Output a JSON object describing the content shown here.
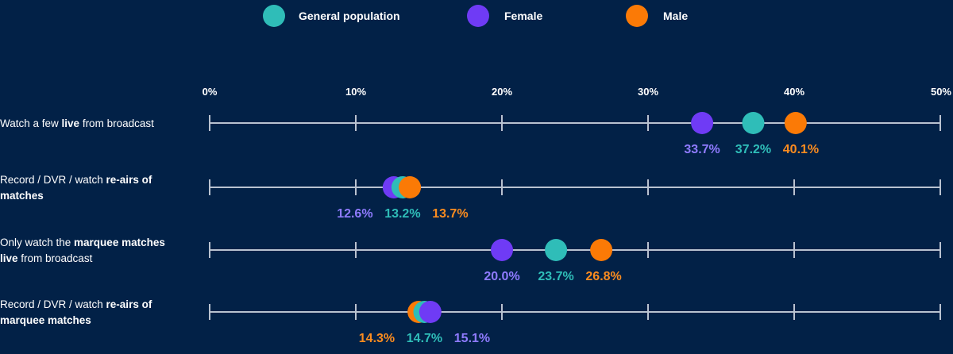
{
  "chart_data": {
    "type": "scatter",
    "subtype": "dot-plot",
    "xlim": [
      0,
      50
    ],
    "x_unit": "%",
    "ticks": [
      {
        "value": 0,
        "label": "0%"
      },
      {
        "value": 10,
        "label": "10%"
      },
      {
        "value": 20,
        "label": "20%"
      },
      {
        "value": 30,
        "label": "30%"
      },
      {
        "value": 40,
        "label": "40%"
      },
      {
        "value": 50,
        "label": "50%"
      }
    ],
    "legend_position": "top-center",
    "series": [
      {
        "key": "general",
        "name": "General population",
        "color": "#2fbdb8",
        "label_color": "#2fbdb8"
      },
      {
        "key": "female",
        "name": "Female",
        "color": "#6f3bf5",
        "label_color": "#8f7bff"
      },
      {
        "key": "male",
        "name": "Male",
        "color": "#fb7a06",
        "label_color": "#fb8c1f"
      }
    ],
    "categories": [
      {
        "label_parts": [
          {
            "text": "Watch a few ",
            "bold": false
          },
          {
            "text": "live",
            "bold": true
          },
          {
            "text": " from broadcast",
            "bold": false
          }
        ],
        "label_lines": [
          [
            0,
            1,
            2
          ]
        ],
        "draw_order": [
          "female",
          "general",
          "male"
        ],
        "values": {
          "general": 37.2,
          "female": 33.7,
          "male": 40.1
        },
        "value_labels": {
          "general": "37.2%",
          "female": "33.7%",
          "male": "40.1%"
        }
      },
      {
        "label_parts": [
          {
            "text": "Record / DVR / watch ",
            "bold": false
          },
          {
            "text": "re-airs of",
            "bold": true
          },
          {
            "text": "matches",
            "bold": true
          }
        ],
        "label_lines": [
          [
            0,
            1
          ],
          [
            2
          ]
        ],
        "draw_order": [
          "female",
          "general",
          "male"
        ],
        "values": {
          "general": 13.2,
          "female": 12.6,
          "male": 13.7
        },
        "value_labels": {
          "general": "13.2%",
          "female": "12.6%",
          "male": "13.7%"
        }
      },
      {
        "label_parts": [
          {
            "text": "Only watch the ",
            "bold": false
          },
          {
            "text": "marquee matches",
            "bold": true
          },
          {
            "text": "live",
            "bold": true
          },
          {
            "text": " from broadcast",
            "bold": false
          }
        ],
        "label_lines": [
          [
            0,
            1
          ],
          [
            2,
            3
          ]
        ],
        "draw_order": [
          "female",
          "general",
          "male"
        ],
        "values": {
          "general": 23.7,
          "female": 20.0,
          "male": 26.8
        },
        "value_labels": {
          "general": "23.7%",
          "female": "20.0%",
          "male": "26.8%"
        }
      },
      {
        "label_parts": [
          {
            "text": "Record / DVR / watch ",
            "bold": false
          },
          {
            "text": "re-airs of",
            "bold": true
          },
          {
            "text": "marquee matches",
            "bold": true
          }
        ],
        "label_lines": [
          [
            0,
            1
          ],
          [
            2
          ]
        ],
        "draw_order": [
          "male",
          "general",
          "female"
        ],
        "values": {
          "general": 14.7,
          "female": 15.1,
          "male": 14.3
        },
        "value_labels": {
          "general": "14.7%",
          "female": "15.1%",
          "male": "14.3%"
        }
      }
    ]
  }
}
